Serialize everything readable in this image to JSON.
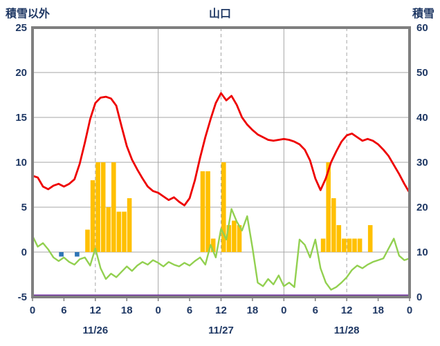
{
  "chart_data": {
    "type": "line+bar",
    "title": "山口",
    "left_axis": {
      "title": "積雪以外",
      "min": -5,
      "max": 25,
      "ticks": [
        25,
        20,
        15,
        10,
        5,
        0,
        -5
      ]
    },
    "right_axis": {
      "title": "積雪",
      "min": 0,
      "max": 60,
      "ticks": [
        60,
        50,
        40,
        30,
        20,
        10,
        0
      ]
    },
    "x": {
      "unit": "hour",
      "total_hours": 72,
      "tick_hours": [
        0,
        6,
        12,
        18,
        24,
        30,
        36,
        42,
        48,
        54,
        60,
        66,
        72
      ],
      "tick_labels": [
        "0",
        "6",
        "12",
        "18",
        "0",
        "6",
        "12",
        "18",
        "0",
        "6",
        "12",
        "18",
        "0"
      ],
      "date_labels": [
        {
          "label": "11/26",
          "center_hour": 12
        },
        {
          "label": "11/27",
          "center_hour": 36
        },
        {
          "label": "11/28",
          "center_hour": 60
        }
      ]
    },
    "gridlines": {
      "horizontal_left_values": [
        20,
        15,
        10,
        5,
        0
      ],
      "vertical_solid_hours": [
        24,
        48
      ],
      "vertical_dashed_hours": [
        12,
        36,
        60
      ]
    },
    "series": [
      {
        "name": "orange-bars",
        "type": "bar",
        "axis": "left",
        "color": "#FFC000",
        "values": [
          0,
          0,
          0,
          0,
          0,
          0,
          0,
          0,
          0,
          0,
          2.5,
          8,
          10,
          10,
          5,
          10,
          4.5,
          4.5,
          6,
          0,
          0,
          0,
          0,
          0,
          0,
          0,
          0,
          0,
          0,
          0,
          0,
          0,
          9,
          9,
          1.5,
          0,
          10,
          3,
          3.5,
          3,
          0,
          0,
          0,
          0,
          0,
          0,
          0,
          0,
          0,
          0,
          0,
          0,
          0,
          0,
          0,
          1.5,
          10,
          6,
          3,
          1.5,
          1.5,
          1.5,
          1.5,
          0,
          3,
          0,
          0,
          0,
          0,
          0,
          0,
          0,
          0
        ]
      },
      {
        "name": "blue-bars",
        "type": "bar",
        "axis": "left",
        "color": "#2E75B6",
        "values": [
          0,
          0,
          0,
          0,
          0,
          -0.5,
          0,
          0,
          -0.5,
          0,
          0,
          0,
          0,
          0,
          0,
          0,
          0,
          0,
          0,
          0,
          0,
          0,
          0,
          0,
          0,
          0,
          0,
          0,
          0,
          0,
          0,
          0,
          0,
          0,
          0,
          0,
          0,
          0,
          0,
          0,
          0,
          0,
          0,
          0,
          0,
          0,
          0,
          0,
          0,
          0,
          0,
          0,
          0,
          0,
          0,
          0,
          0,
          0,
          0,
          0,
          0,
          0,
          0,
          0,
          0,
          0,
          0,
          0,
          0,
          0,
          0,
          0,
          0
        ]
      },
      {
        "name": "green-line",
        "type": "line",
        "axis": "left",
        "color": "#92D050",
        "width": 2.4,
        "values": [
          1.8,
          0.6,
          1.0,
          0.3,
          -0.6,
          -1.0,
          -0.6,
          -1.1,
          -1.4,
          -0.8,
          -0.6,
          -1.5,
          0.4,
          -1.8,
          -3.0,
          -2.4,
          -2.8,
          -2.2,
          -1.6,
          -2.1,
          -1.5,
          -1.1,
          -1.4,
          -0.9,
          -1.2,
          -1.6,
          -1.1,
          -1.4,
          -1.6,
          -1.2,
          -1.5,
          -1.0,
          -0.6,
          -1.4,
          0.8,
          -0.6,
          2.6,
          1.4,
          4.8,
          3.4,
          2.4,
          4.0,
          0.5,
          -3.4,
          -3.8,
          -3.0,
          -3.6,
          -2.6,
          -3.8,
          -3.4,
          -3.9,
          1.4,
          0.8,
          -0.6,
          1.4,
          -1.8,
          -3.4,
          -4.2,
          -3.9,
          -3.4,
          -2.8,
          -2.0,
          -1.5,
          -1.8,
          -1.4,
          -1.1,
          -0.9,
          -0.7,
          0.4,
          1.5,
          -0.4,
          -0.9,
          -0.7
        ]
      },
      {
        "name": "red-line",
        "type": "line",
        "axis": "left",
        "color": "#EE0000",
        "width": 2.8,
        "values": [
          8.5,
          8.3,
          7.3,
          7.0,
          7.4,
          7.6,
          7.3,
          7.6,
          8.1,
          9.8,
          12.2,
          14.8,
          16.6,
          17.2,
          17.3,
          17.1,
          16.3,
          14.0,
          11.8,
          10.3,
          9.2,
          8.2,
          7.3,
          6.8,
          6.6,
          6.2,
          5.8,
          6.1,
          5.6,
          5.2,
          6.0,
          8.0,
          10.5,
          12.8,
          14.8,
          16.6,
          17.7,
          16.9,
          17.4,
          16.4,
          15.0,
          14.2,
          13.6,
          13.1,
          12.8,
          12.5,
          12.4,
          12.5,
          12.6,
          12.5,
          12.3,
          12.0,
          11.4,
          10.2,
          8.2,
          6.9,
          8.2,
          10.0,
          11.2,
          12.3,
          13.0,
          13.2,
          12.8,
          12.4,
          12.6,
          12.4,
          12.0,
          11.4,
          10.7,
          9.7,
          8.7,
          7.6,
          6.6
        ]
      },
      {
        "name": "purple-line",
        "type": "line",
        "axis": "right",
        "color": "#7030A0",
        "constant_value": 0
      }
    ]
  }
}
